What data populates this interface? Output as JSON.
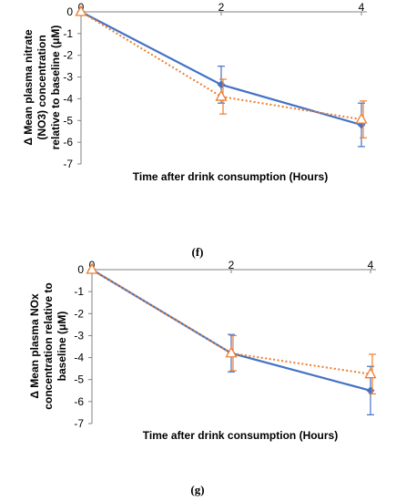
{
  "chart_data": [
    {
      "type": "line",
      "panel_label": "(f)",
      "ylabel_lines": [
        "Δ Mean plasma nitrate",
        "(NO3) concentration",
        "relative to baseline (μM)"
      ],
      "xlabel": "Time after drink consumption (Hours)",
      "x": [
        0,
        2,
        4
      ],
      "xticks": [
        "0",
        "2",
        "4"
      ],
      "ylim": [
        -7,
        0
      ],
      "yticks": [
        "0",
        "-1",
        "-2",
        "-3",
        "-4",
        "-5",
        "-6",
        "-7"
      ],
      "grid": false,
      "series": [
        {
          "color": "#4472C4",
          "style": "solid",
          "marker": "diamond",
          "values": [
            0,
            -3.35,
            -5.2
          ],
          "error": [
            0,
            0.85,
            1.0
          ]
        },
        {
          "color": "#ED7D31",
          "style": "dotted",
          "marker": "triangle",
          "values": [
            0,
            -3.9,
            -4.95
          ],
          "error": [
            0,
            0.8,
            0.85
          ]
        }
      ]
    },
    {
      "type": "line",
      "panel_label": "(g)",
      "ylabel_lines": [
        "Δ Mean plasma NOx",
        "concentration relative to",
        "baseline (μM)"
      ],
      "xlabel": "Time after drink consumption (Hours)",
      "x": [
        0,
        2,
        4
      ],
      "xticks": [
        "0",
        "2",
        "4"
      ],
      "ylim": [
        -7,
        0
      ],
      "yticks": [
        "0",
        "-1",
        "-2",
        "-3",
        "-4",
        "-5",
        "-6",
        "-7"
      ],
      "grid": false,
      "series": [
        {
          "color": "#4472C4",
          "style": "solid",
          "marker": "diamond",
          "values": [
            0,
            -3.8,
            -5.5
          ],
          "error": [
            0,
            0.85,
            1.1
          ]
        },
        {
          "color": "#ED7D31",
          "style": "dotted",
          "marker": "triangle",
          "values": [
            0,
            -3.8,
            -4.75
          ],
          "error": [
            0,
            0.8,
            0.9
          ]
        }
      ]
    }
  ]
}
